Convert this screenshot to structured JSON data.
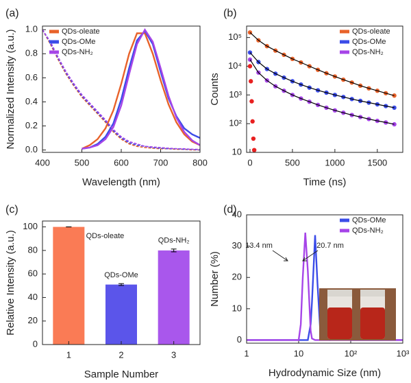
{
  "chart_data": [
    {
      "type": "line",
      "panel_label": "(a)",
      "x_label": "Wavelength (nm)",
      "y_label": "Normalized Intensity (a.u.)",
      "xlim": [
        400,
        800
      ],
      "ylim": [
        -0.02,
        1.03
      ],
      "xticks": [
        400,
        500,
        600,
        700,
        800
      ],
      "yticks": [
        {
          "value": 0,
          "label": "0.0"
        },
        0.2,
        0.4,
        0.6,
        0.8,
        {
          "value": 1,
          "label": "1.0"
        }
      ],
      "legend": "upper left",
      "x": [
        400,
        420,
        440,
        460,
        480,
        500,
        520,
        540,
        560,
        580,
        600,
        620,
        640,
        660,
        680,
        700,
        720,
        740,
        760,
        780,
        800
      ],
      "series": [
        {
          "name": "QDs-oleate",
          "color": "#e8622a",
          "values": [
            null,
            null,
            null,
            null,
            null,
            0.01,
            0.04,
            0.09,
            0.18,
            0.33,
            0.55,
            0.8,
            0.97,
            0.97,
            0.8,
            0.58,
            0.38,
            0.23,
            0.13,
            0.07,
            0.04
          ],
          "absorption": [
            1.0,
            0.88,
            0.75,
            0.63,
            0.53,
            0.44,
            0.37,
            0.3,
            0.23,
            0.15,
            0.09,
            0.05,
            0.03,
            0.02,
            0.015,
            0.01,
            0.01,
            0.005,
            0.005,
            0.0,
            0.0
          ]
        },
        {
          "name": "QDs-OMe",
          "color": "#3b4ce8",
          "values": [
            null,
            null,
            null,
            null,
            null,
            0.01,
            0.02,
            0.05,
            0.11,
            0.22,
            0.42,
            0.68,
            0.91,
            0.99,
            0.88,
            0.65,
            0.43,
            0.28,
            0.18,
            0.13,
            0.1
          ],
          "absorption": [
            1.0,
            0.89,
            0.76,
            0.64,
            0.54,
            0.45,
            0.38,
            0.31,
            0.24,
            0.16,
            0.1,
            0.06,
            0.04,
            0.03,
            0.02,
            0.015,
            0.01,
            0.01,
            0.005,
            0.005,
            0.0
          ]
        },
        {
          "name": "QDs-NH₂",
          "color": "#a645e8",
          "values": [
            null,
            null,
            null,
            null,
            null,
            0.01,
            0.02,
            0.04,
            0.09,
            0.19,
            0.37,
            0.63,
            0.88,
            1.0,
            0.9,
            0.68,
            0.45,
            0.27,
            0.15,
            0.08,
            0.04
          ],
          "absorption": [
            1.0,
            0.9,
            0.77,
            0.65,
            0.55,
            0.46,
            0.39,
            0.32,
            0.25,
            0.17,
            0.11,
            0.07,
            0.05,
            0.03,
            0.025,
            0.02,
            0.015,
            0.01,
            0.01,
            0.005,
            0.005
          ]
        }
      ]
    },
    {
      "type": "scatter",
      "panel_label": "(b)",
      "x_label": "Time (ns)",
      "y_label": "Counts",
      "xlim": [
        -40,
        1800
      ],
      "ylim": [
        10,
        250000
      ],
      "y_scale": "log",
      "xticks": [
        0,
        500,
        1000,
        1500
      ],
      "yticks": [
        10,
        {
          "value": 100,
          "label": "10²"
        },
        {
          "value": 1000,
          "label": "10³"
        },
        {
          "value": 10000,
          "label": "10⁴"
        },
        {
          "value": 100000,
          "label": "10⁵"
        }
      ],
      "legend": "upper right",
      "fit_line_color": "#000000",
      "x": [
        0,
        100,
        200,
        300,
        400,
        500,
        600,
        700,
        800,
        900,
        1000,
        1100,
        1200,
        1300,
        1400,
        1500,
        1600,
        1700
      ],
      "series": [
        {
          "name": "QDs-oleate",
          "color": "#e8622a",
          "values": [
            150000,
            80000,
            50000,
            35000,
            25000,
            18000,
            13500,
            10000,
            7500,
            5700,
            4400,
            3400,
            2700,
            2100,
            1700,
            1400,
            1150,
            950
          ]
        },
        {
          "name": "QDs-OMe",
          "color": "#3b4ce8",
          "values": [
            30000,
            14000,
            8000,
            5500,
            4000,
            3000,
            2300,
            1800,
            1450,
            1200,
            1000,
            850,
            720,
            620,
            540,
            470,
            410,
            360
          ]
        },
        {
          "name": "QDs-NH₂",
          "color": "#a645e8",
          "values": [
            17000,
            6000,
            3200,
            2000,
            1400,
            1000,
            750,
            580,
            450,
            360,
            290,
            240,
            200,
            170,
            145,
            125,
            110,
            95
          ]
        },
        {
          "color": "#e82020",
          "x": [
            0,
            10,
            20,
            30,
            40,
            50
          ],
          "values": [
            10000,
            3000,
            600,
            120,
            30,
            12
          ]
        }
      ]
    },
    {
      "type": "bar",
      "panel_label": "(c)",
      "x_label": "Sample Number",
      "y_label": "Relative Intensity (a.u.)",
      "ylim": [
        0,
        105
      ],
      "yticks": [
        0,
        20,
        40,
        60,
        80,
        100
      ],
      "categories": [
        "1",
        "2",
        "3"
      ],
      "values": [
        100,
        51,
        80
      ],
      "errors": [
        0,
        0.8,
        1.2
      ],
      "labels": [
        "QDs-oleate",
        "QDs-OMe",
        "QDs-NH₂"
      ],
      "colors": [
        "#fa7b55",
        "#5b55ea",
        "#a957ec"
      ],
      "error_color": "#000000"
    },
    {
      "type": "line",
      "panel_label": "(d)",
      "x_label": "Hydrodynamic Size (nm)",
      "y_label": "Number (%)",
      "xlim": [
        1,
        1000
      ],
      "ylim": [
        -1,
        40
      ],
      "x_scale": "log",
      "xticks": [
        1,
        10,
        {
          "value": 100,
          "label": "10²"
        },
        {
          "value": 1000,
          "label": "10³"
        }
      ],
      "yticks": [
        0,
        10,
        20,
        30,
        40
      ],
      "legend": "upper right",
      "annotations": [
        "13.4 nm",
        "20.7 nm"
      ],
      "x": [
        1,
        2,
        5,
        8,
        10,
        11,
        12,
        13.4,
        15,
        17,
        18,
        20.7,
        23,
        26,
        30,
        40,
        60,
        100,
        1000
      ],
      "series": [
        {
          "name": "QDs-OMe",
          "color": "#3b4ce8",
          "values": [
            0,
            0,
            0,
            0,
            0,
            0,
            0,
            0,
            0,
            5,
            12,
            33.5,
            18,
            3,
            0.2,
            0,
            0.4,
            0,
            0
          ]
        },
        {
          "name": "QDs-NH₂",
          "color": "#a645e8",
          "values": [
            0,
            0,
            0,
            0,
            0,
            5,
            20,
            34.3,
            22,
            3,
            0.5,
            0,
            0,
            0,
            0,
            0,
            0,
            0,
            0
          ]
        }
      ]
    }
  ]
}
